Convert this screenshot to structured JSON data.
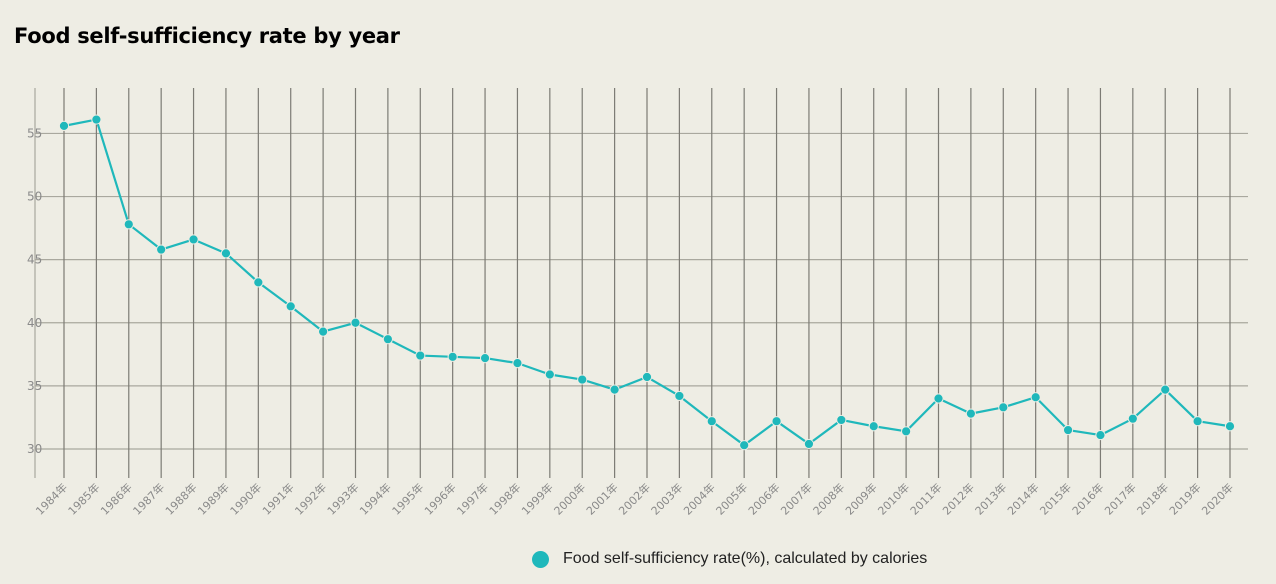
{
  "chart_data": {
    "type": "line",
    "title": "Food self-sufficiency rate by year",
    "xlabel": "",
    "ylabel": "",
    "categories": [
      "1984年",
      "1985年",
      "1986年",
      "1987年",
      "1988年",
      "1989年",
      "1990年",
      "1991年",
      "1992年",
      "1993年",
      "1994年",
      "1995年",
      "1996年",
      "1997年",
      "1998年",
      "1999年",
      "2000年",
      "2001年",
      "2002年",
      "2003年",
      "2004年",
      "2005年",
      "2006年",
      "2007年",
      "2008年",
      "2009年",
      "2010年",
      "2011年",
      "2012年",
      "2013年",
      "2014年",
      "2015年",
      "2016年",
      "2017年",
      "2018年",
      "2019年",
      "2020年"
    ],
    "series": [
      {
        "name": "Food self-sufficiency rate(%), calculated by calories",
        "color": "#1fb8bb",
        "values": [
          55.6,
          56.1,
          47.8,
          45.8,
          46.6,
          45.5,
          43.2,
          41.3,
          39.3,
          40.0,
          38.7,
          37.4,
          37.3,
          37.2,
          36.8,
          35.9,
          35.5,
          34.7,
          35.7,
          34.2,
          32.2,
          30.3,
          32.2,
          30.4,
          32.3,
          31.8,
          31.4,
          34.0,
          32.8,
          33.3,
          34.1,
          31.5,
          31.1,
          32.4,
          34.7,
          32.2,
          31.8
        ]
      }
    ],
    "yticks": [
      30,
      35,
      40,
      45,
      50,
      55
    ],
    "ylim": [
      27.7,
      58.6
    ],
    "grid": true,
    "legend": "bottom-center"
  }
}
